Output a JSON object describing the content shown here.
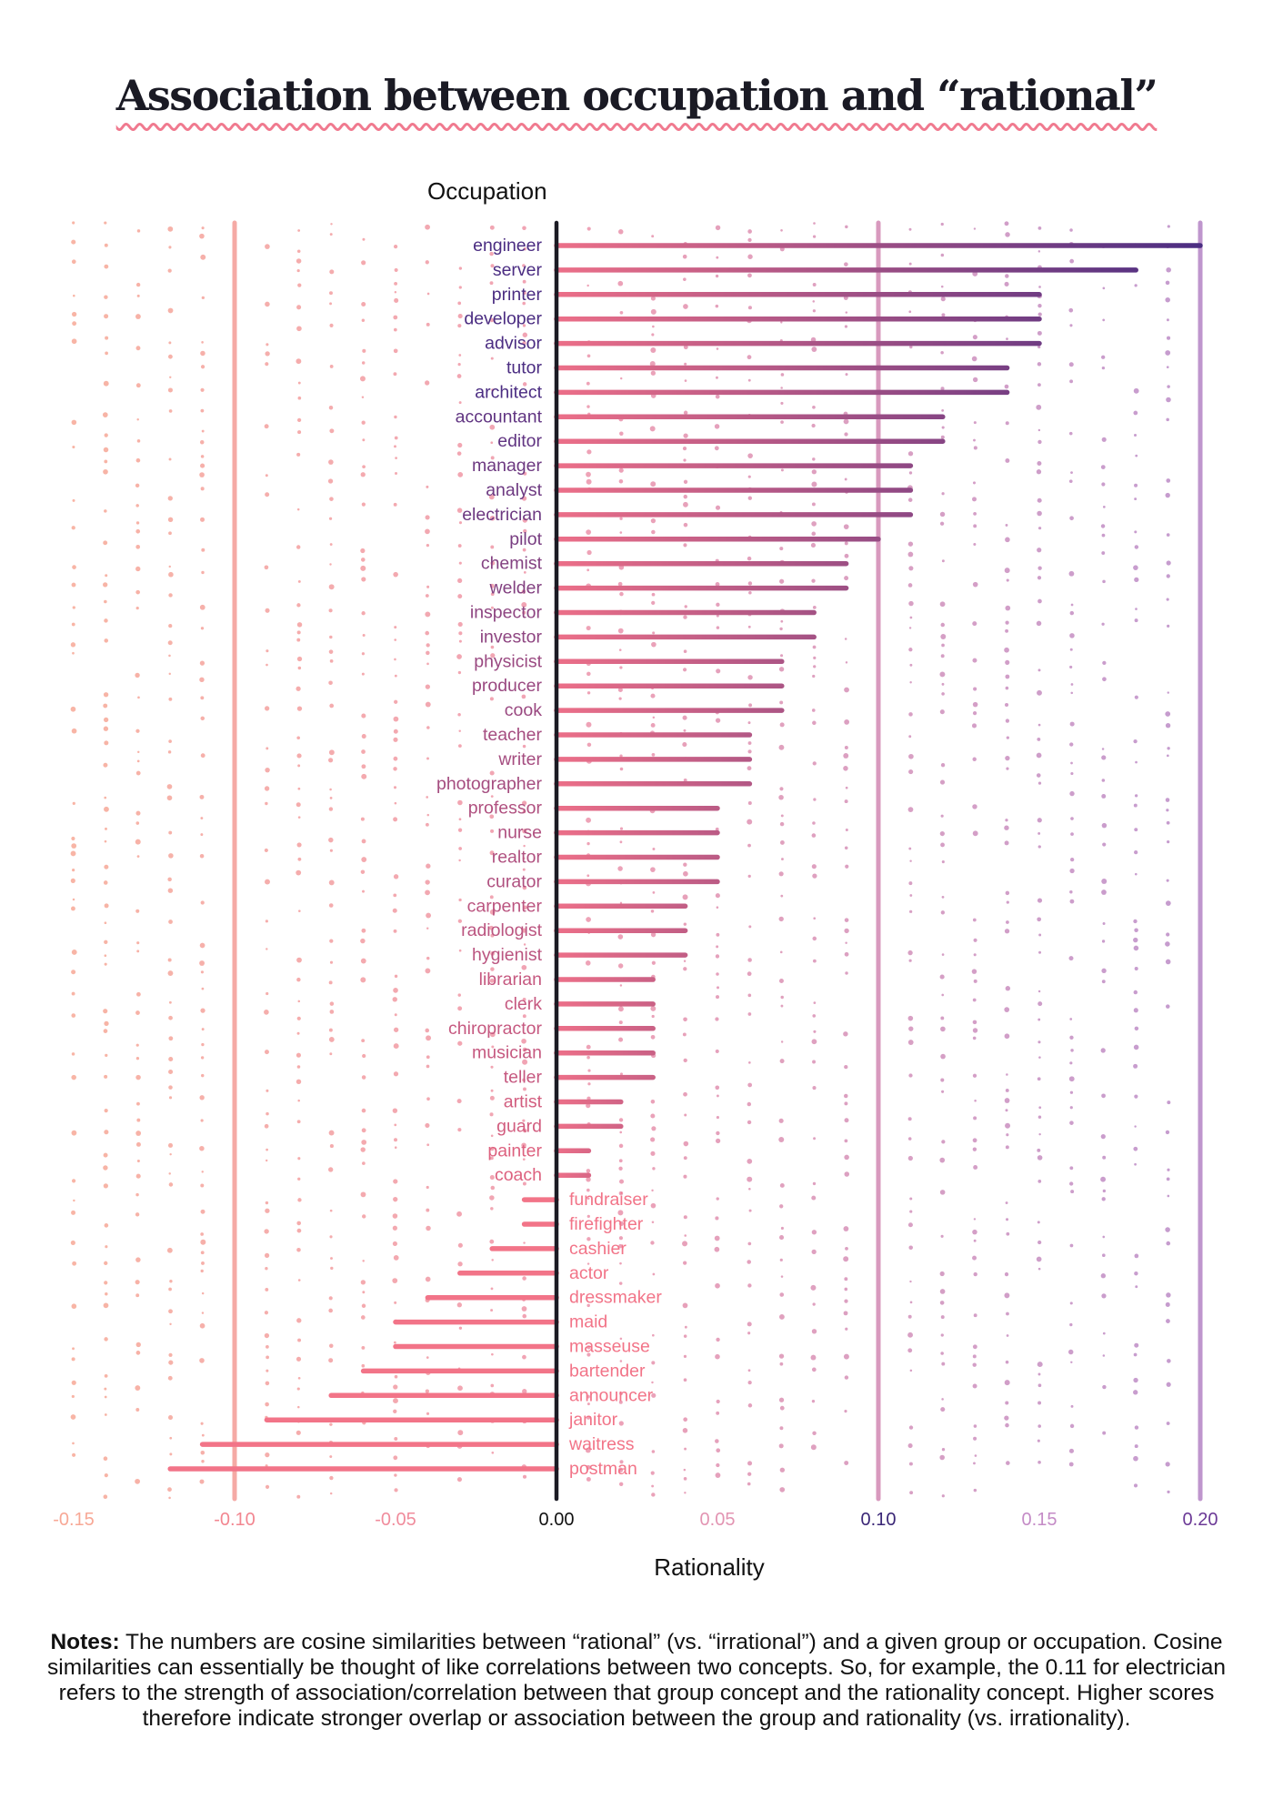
{
  "title": "Association between occupation and “rational”",
  "notes": {
    "label": "Notes:",
    "text": " The numbers are cosine similarities between “rational” (vs. “irrational”) and a given group or occupation. Cosine similarities can essentially be thought of like correlations between two concepts. So, for example, the 0.11 for electrician refers to the strength of association/correlation between that group concept and the rationality concept. Higher scores therefore indicate stronger overlap or association between the group and rationality (vs. irrationality)."
  },
  "colors": {
    "negative": "#f27488",
    "zero": "#e06a86",
    "max": "#4b2d82",
    "axis": "#1b1b24"
  },
  "chart_data": {
    "type": "bar",
    "orientation": "horizontal",
    "title": "Association between occupation and “rational”",
    "xlabel": "Rationality",
    "ylabel": "Occupation",
    "xlim": [
      -0.15,
      0.2
    ],
    "xticks": [
      "-0.15",
      "-0.10",
      "-0.05",
      "0.00",
      "0.05",
      "0.10",
      "0.15",
      "0.20"
    ],
    "reference_lines": [
      -0.1,
      0.1,
      0.2
    ],
    "grid": "dotted vertical",
    "categories": [
      "engineer",
      "server",
      "printer",
      "developer",
      "advisor",
      "tutor",
      "architect",
      "accountant",
      "editor",
      "manager",
      "analyst",
      "electrician",
      "pilot",
      "chemist",
      "welder",
      "inspector",
      "investor",
      "physicist",
      "producer",
      "cook",
      "teacher",
      "writer",
      "photographer",
      "professor",
      "nurse",
      "realtor",
      "curator",
      "carpenter",
      "radiologist",
      "hygienist",
      "librarian",
      "clerk",
      "chiropractor",
      "musician",
      "teller",
      "artist",
      "guard",
      "painter",
      "coach",
      "fundraiser",
      "firefighter",
      "cashier",
      "actor",
      "dressmaker",
      "maid",
      "masseuse",
      "bartender",
      "announcer",
      "janitor",
      "waitress",
      "postman"
    ],
    "values": [
      0.2,
      0.18,
      0.15,
      0.15,
      0.15,
      0.14,
      0.14,
      0.12,
      0.12,
      0.11,
      0.11,
      0.11,
      0.1,
      0.09,
      0.09,
      0.08,
      0.08,
      0.07,
      0.07,
      0.07,
      0.06,
      0.06,
      0.06,
      0.05,
      0.05,
      0.05,
      0.05,
      0.04,
      0.04,
      0.04,
      0.03,
      0.03,
      0.03,
      0.03,
      0.03,
      0.02,
      0.02,
      0.01,
      0.01,
      -0.01,
      -0.01,
      -0.02,
      -0.03,
      -0.04,
      -0.05,
      -0.05,
      -0.06,
      -0.07,
      -0.09,
      -0.11,
      -0.12
    ]
  }
}
